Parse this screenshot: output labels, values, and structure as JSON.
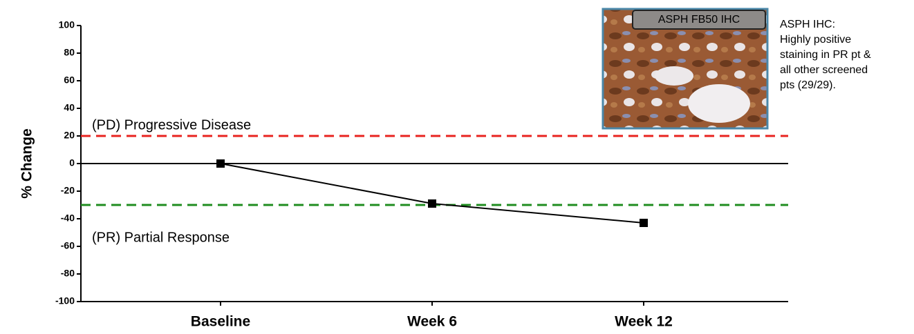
{
  "chart_data": {
    "type": "line",
    "ylabel": "% Change",
    "categories": [
      "Baseline",
      "Week 6",
      "Week 12"
    ],
    "series": [
      {
        "color": "#000000",
        "values": [
          0,
          -29,
          -43
        ]
      }
    ],
    "ylim": [
      -100,
      100
    ],
    "yticks": [
      -100,
      -80,
      -60,
      -40,
      -20,
      0,
      20,
      40,
      60,
      80,
      100
    ],
    "reference_lines": [
      {
        "value": 20,
        "color": "#e8231f",
        "style": "dashed",
        "label": "(PD) Progressive Disease"
      },
      {
        "value": 0,
        "color": "#000000",
        "style": "solid"
      },
      {
        "value": -30,
        "color": "#1f8c1f",
        "style": "dashed",
        "label": "(PR) Partial Response"
      }
    ],
    "inset_label": "ASPH FB50 IHC",
    "note_lines": [
      "ASPH IHC:",
      "Highly positive",
      "staining in PR pt &",
      "all other screened",
      "pts (29/29)."
    ]
  }
}
